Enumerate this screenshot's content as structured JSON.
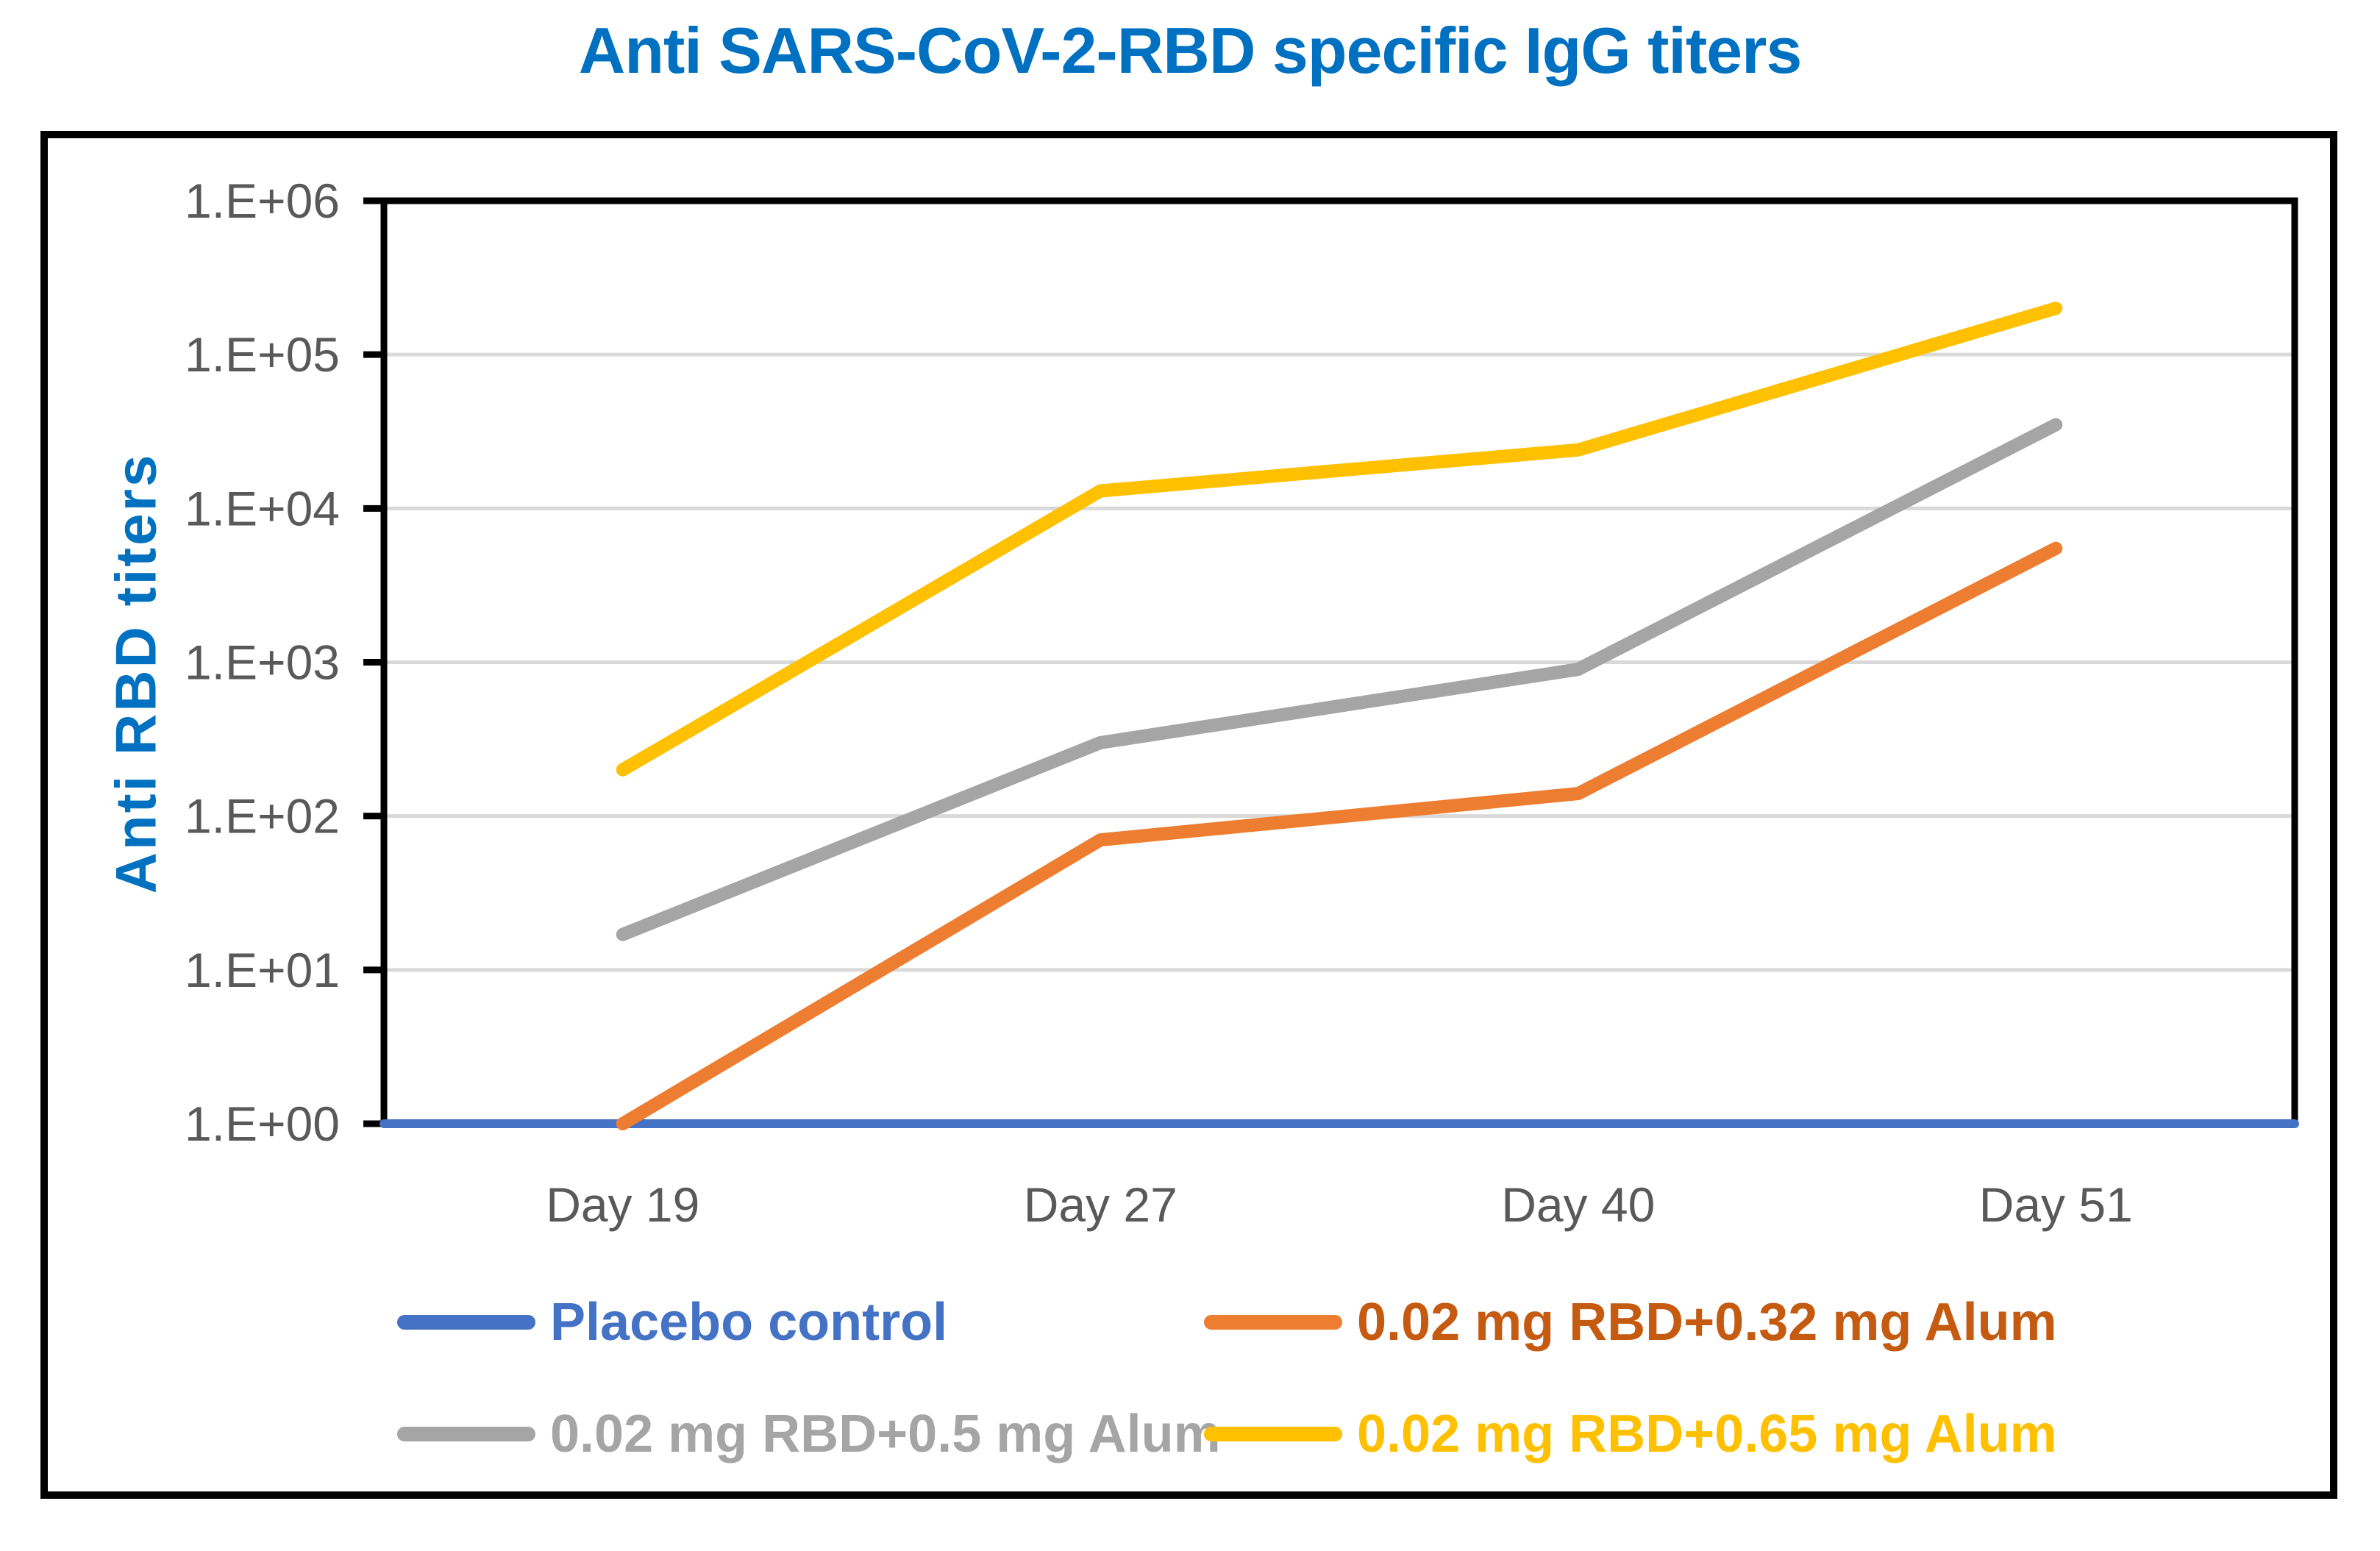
{
  "title": "Anti SARS-CoV-2-RBD specific IgG titers",
  "colors": {
    "title_text": "#0070C0",
    "axis_text": "#595959",
    "gridline": "#D9D9D9",
    "frame": "#000000",
    "background": "#FFFFFF"
  },
  "chart_data": {
    "type": "line",
    "title": "Anti SARS-CoV-2-RBD specific IgG titers",
    "xlabel": "",
    "ylabel": "Anti RBD titers",
    "yscale": "log",
    "ylim": [
      1,
      1000000
    ],
    "ytick_labels": [
      "1.E+00",
      "1.E+01",
      "1.E+02",
      "1.E+03",
      "1.E+04",
      "1.E+05",
      "1.E+06"
    ],
    "categories": [
      "Day 19",
      "Day 27",
      "Day 40",
      "Day 51"
    ],
    "grid": true,
    "legend_position": "bottom",
    "series": [
      {
        "name": "Placebo control",
        "color": "#4472C4",
        "label_color": "#4472C4",
        "values": [
          1,
          1,
          1,
          1
        ],
        "full_width": true,
        "stroke_width": 12
      },
      {
        "name": "0.02 mg RBD+0.32 mg Alum",
        "color": "#ED7D31",
        "label_color": "#C55A11",
        "values": [
          1,
          70,
          140,
          5500
        ],
        "full_width": false,
        "stroke_width": 18
      },
      {
        "name": "0.02 mg RBD+0.5 mg Alum",
        "color": "#A5A5A5",
        "label_color": "#A5A5A5",
        "values": [
          17,
          300,
          900,
          35000
        ],
        "full_width": false,
        "stroke_width": 18
      },
      {
        "name": "0.02 mg RBD+0.65 mg Alum",
        "color": "#FFC000",
        "label_color": "#FFC000",
        "values": [
          200,
          13000,
          24000,
          200000
        ],
        "full_width": false,
        "stroke_width": 18
      }
    ]
  }
}
